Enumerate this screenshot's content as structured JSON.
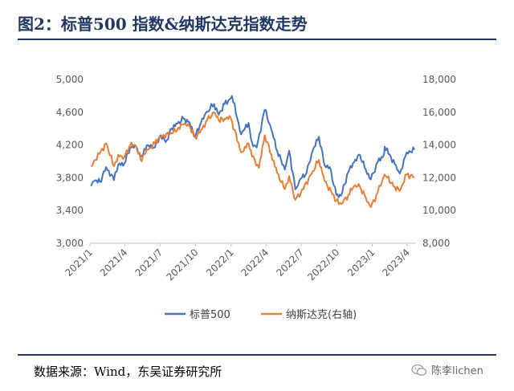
{
  "title": "图2：标普500 指数&纳斯达克指数走势",
  "source": "数据来源：Wind，东吴证券研究所",
  "watermark": "陈李lichen",
  "chart_data": {
    "type": "line",
    "x_ticks": [
      "2021/1",
      "2021/4",
      "2021/7",
      "2021/10",
      "2022/1",
      "2022/4",
      "2022/7",
      "2022/10",
      "2023/1",
      "2023/4"
    ],
    "y_left": {
      "ticks": [
        "3,000",
        "3,400",
        "3,800",
        "4,200",
        "4,600",
        "5,000"
      ],
      "lim": [
        3000,
        5000
      ]
    },
    "y_right": {
      "ticks": [
        "8,000",
        "10,000",
        "12,000",
        "14,000",
        "16,000",
        "18,000"
      ],
      "lim": [
        8000,
        18000
      ]
    },
    "series": [
      {
        "name": "标普500",
        "axis": "left",
        "color": "#4472c4",
        "points": [
          [
            "2021-01-04",
            3700
          ],
          [
            "2021-01-15",
            3770
          ],
          [
            "2021-01-27",
            3750
          ],
          [
            "2021-02-12",
            3930
          ],
          [
            "2021-03-04",
            3770
          ],
          [
            "2021-03-15",
            3960
          ],
          [
            "2021-03-31",
            3975
          ],
          [
            "2021-04-15",
            4170
          ],
          [
            "2021-04-30",
            4180
          ],
          [
            "2021-05-12",
            4060
          ],
          [
            "2021-05-31",
            4200
          ],
          [
            "2021-06-18",
            4170
          ],
          [
            "2021-06-30",
            4300
          ],
          [
            "2021-07-19",
            4260
          ],
          [
            "2021-07-31",
            4400
          ],
          [
            "2021-08-15",
            4460
          ],
          [
            "2021-08-31",
            4520
          ],
          [
            "2021-09-15",
            4480
          ],
          [
            "2021-09-30",
            4300
          ],
          [
            "2021-10-15",
            4470
          ],
          [
            "2021-10-31",
            4610
          ],
          [
            "2021-11-18",
            4700
          ],
          [
            "2021-11-30",
            4570
          ],
          [
            "2021-12-15",
            4700
          ],
          [
            "2021-12-31",
            4770
          ],
          [
            "2022-01-03",
            4800
          ],
          [
            "2022-01-27",
            4330
          ],
          [
            "2022-02-15",
            4470
          ],
          [
            "2022-02-24",
            4230
          ],
          [
            "2022-03-08",
            4170
          ],
          [
            "2022-03-29",
            4630
          ],
          [
            "2022-04-15",
            4390
          ],
          [
            "2022-04-30",
            4130
          ],
          [
            "2022-05-20",
            3900
          ],
          [
            "2022-05-31",
            4130
          ],
          [
            "2022-06-16",
            3660
          ],
          [
            "2022-06-30",
            3790
          ],
          [
            "2022-07-15",
            3860
          ],
          [
            "2022-07-31",
            4130
          ],
          [
            "2022-08-16",
            4300
          ],
          [
            "2022-08-31",
            3950
          ],
          [
            "2022-09-13",
            3930
          ],
          [
            "2022-09-30",
            3590
          ],
          [
            "2022-10-12",
            3580
          ],
          [
            "2022-10-31",
            3870
          ],
          [
            "2022-11-15",
            3990
          ],
          [
            "2022-11-30",
            4080
          ],
          [
            "2022-12-15",
            3900
          ],
          [
            "2022-12-28",
            3780
          ],
          [
            "2023-01-15",
            3990
          ],
          [
            "2023-01-31",
            4080
          ],
          [
            "2023-02-02",
            4180
          ],
          [
            "2023-02-28",
            3970
          ],
          [
            "2023-03-13",
            3850
          ],
          [
            "2023-03-31",
            4110
          ],
          [
            "2023-04-20",
            4140
          ]
        ]
      },
      {
        "name": "纳斯达克(右轴)",
        "axis": "right",
        "color": "#ed7d31",
        "points": [
          [
            "2021-01-04",
            12700
          ],
          [
            "2021-01-15",
            13100
          ],
          [
            "2021-02-12",
            14100
          ],
          [
            "2021-03-04",
            12700
          ],
          [
            "2021-03-15",
            13400
          ],
          [
            "2021-03-31",
            13250
          ],
          [
            "2021-04-15",
            14000
          ],
          [
            "2021-04-30",
            13950
          ],
          [
            "2021-05-12",
            13100
          ],
          [
            "2021-05-31",
            13700
          ],
          [
            "2021-06-18",
            14100
          ],
          [
            "2021-06-30",
            14500
          ],
          [
            "2021-07-31",
            14700
          ],
          [
            "2021-08-31",
            15250
          ],
          [
            "2021-09-15",
            15150
          ],
          [
            "2021-09-30",
            14450
          ],
          [
            "2021-10-15",
            14900
          ],
          [
            "2021-10-31",
            15500
          ],
          [
            "2021-11-18",
            16000
          ],
          [
            "2021-11-30",
            15500
          ],
          [
            "2021-12-15",
            15600
          ],
          [
            "2021-12-31",
            15650
          ],
          [
            "2022-01-27",
            13550
          ],
          [
            "2022-02-15",
            14100
          ],
          [
            "2022-02-24",
            13300
          ],
          [
            "2022-03-14",
            12600
          ],
          [
            "2022-03-29",
            14600
          ],
          [
            "2022-04-15",
            13400
          ],
          [
            "2022-04-30",
            12300
          ],
          [
            "2022-05-20",
            11300
          ],
          [
            "2022-05-31",
            12100
          ],
          [
            "2022-06-16",
            10650
          ],
          [
            "2022-06-30",
            11050
          ],
          [
            "2022-07-31",
            12400
          ],
          [
            "2022-08-16",
            13100
          ],
          [
            "2022-08-31",
            11800
          ],
          [
            "2022-09-30",
            10600
          ],
          [
            "2022-10-13",
            10400
          ],
          [
            "2022-10-31",
            10950
          ],
          [
            "2022-11-15",
            11500
          ],
          [
            "2022-11-30",
            11450
          ],
          [
            "2022-12-15",
            10800
          ],
          [
            "2022-12-28",
            10200
          ],
          [
            "2023-01-15",
            11100
          ],
          [
            "2023-02-02",
            12200
          ],
          [
            "2023-02-28",
            11450
          ],
          [
            "2023-03-13",
            11200
          ],
          [
            "2023-03-31",
            12200
          ],
          [
            "2023-04-20",
            12050
          ]
        ]
      }
    ]
  }
}
